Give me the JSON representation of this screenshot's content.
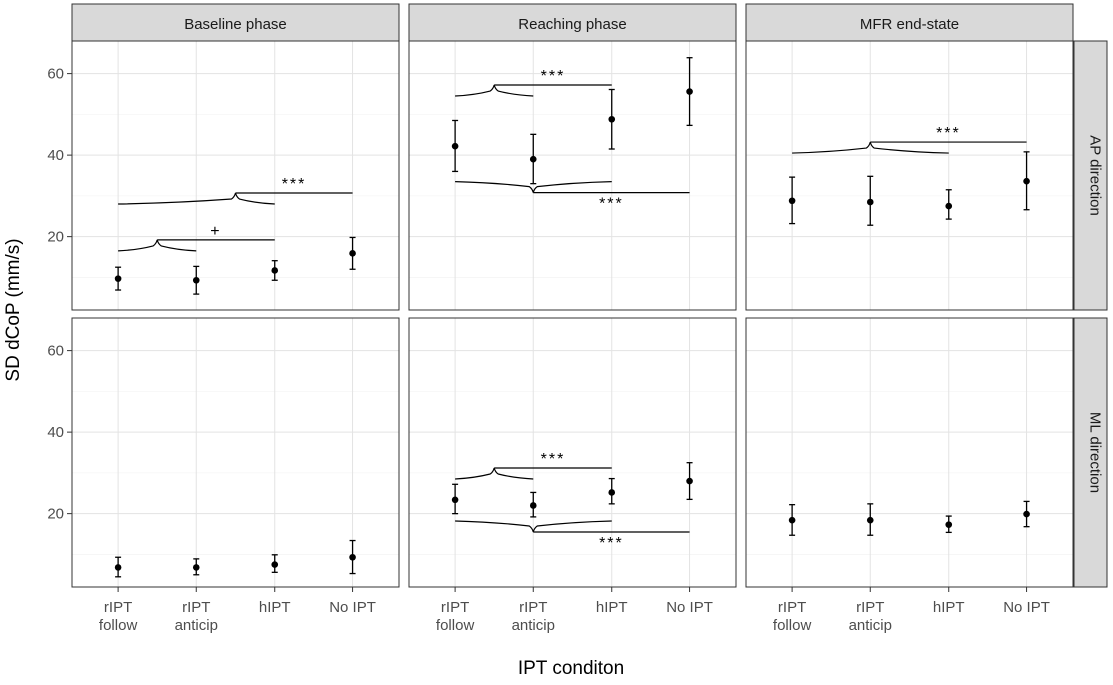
{
  "chart_data": {
    "type": "scatter",
    "subtype": "faceted point estimates with error bars",
    "ylabel": "SD dCoP (mm/s)",
    "xlabel": "IPT conditon",
    "ylim": [
      2,
      68
    ],
    "yticks": [
      20,
      40,
      60
    ],
    "grid": true,
    "categories": [
      {
        "lines": [
          "rIPT",
          "follow"
        ]
      },
      {
        "lines": [
          "rIPT",
          "anticip"
        ]
      },
      {
        "lines": [
          "hIPT"
        ]
      },
      {
        "lines": [
          "No IPT"
        ]
      }
    ],
    "columns": [
      "Baseline phase",
      "Reaching phase",
      "MFR end-state"
    ],
    "rows": [
      "AP direction",
      "ML direction"
    ],
    "panels": [
      {
        "row": 0,
        "col": 0,
        "points": [
          {
            "y": 9.7,
            "lo": 6.9,
            "hi": 12.5
          },
          {
            "y": 9.3,
            "lo": 5.9,
            "hi": 12.7
          },
          {
            "y": 11.7,
            "lo": 9.3,
            "hi": 14.1
          },
          {
            "y": 15.9,
            "lo": 12.0,
            "hi": 19.8
          }
        ],
        "annotations": [
          {
            "type": "brace",
            "from": 0,
            "to": 2,
            "y": 28,
            "tip_at": 1.5,
            "bar_end": 3,
            "label": "***"
          },
          {
            "type": "brace",
            "from": 0,
            "to": 1,
            "y": 16.5,
            "tip_at": 0.5,
            "bar_end": 2,
            "label": "+"
          }
        ]
      },
      {
        "row": 0,
        "col": 1,
        "points": [
          {
            "y": 42.2,
            "lo": 36.0,
            "hi": 48.5
          },
          {
            "y": 39.0,
            "lo": 33.0,
            "hi": 45.1
          },
          {
            "y": 48.8,
            "lo": 41.5,
            "hi": 56.1
          },
          {
            "y": 55.6,
            "lo": 47.3,
            "hi": 63.9
          }
        ],
        "annotations": [
          {
            "type": "brace",
            "from": 0,
            "to": 1,
            "y": 54.5,
            "tip_at": 0.5,
            "bar_end": 2,
            "label": "***"
          },
          {
            "type": "brace_down",
            "from": 0,
            "to": 2,
            "y": 33.5,
            "tip_at": 1,
            "bar_end": 3,
            "label": "***"
          }
        ]
      },
      {
        "row": 0,
        "col": 2,
        "points": [
          {
            "y": 28.8,
            "lo": 23.2,
            "hi": 34.6
          },
          {
            "y": 28.5,
            "lo": 22.8,
            "hi": 34.8
          },
          {
            "y": 27.5,
            "lo": 24.3,
            "hi": 31.5
          },
          {
            "y": 33.6,
            "lo": 26.6,
            "hi": 40.8
          }
        ],
        "annotations": [
          {
            "type": "brace",
            "from": 0,
            "to": 2,
            "y": 40.5,
            "tip_at": 1,
            "bar_end": 3,
            "label": "***"
          }
        ]
      },
      {
        "row": 1,
        "col": 0,
        "points": [
          {
            "y": 6.8,
            "lo": 4.5,
            "hi": 9.3
          },
          {
            "y": 6.8,
            "lo": 5.0,
            "hi": 8.9
          },
          {
            "y": 7.5,
            "lo": 5.6,
            "hi": 9.9
          },
          {
            "y": 9.3,
            "lo": 5.3,
            "hi": 13.4
          }
        ],
        "annotations": []
      },
      {
        "row": 1,
        "col": 1,
        "points": [
          {
            "y": 23.4,
            "lo": 20.0,
            "hi": 27.2
          },
          {
            "y": 22.0,
            "lo": 19.2,
            "hi": 25.2
          },
          {
            "y": 25.2,
            "lo": 22.4,
            "hi": 28.6
          },
          {
            "y": 28.0,
            "lo": 23.5,
            "hi": 32.5
          }
        ],
        "annotations": [
          {
            "type": "brace",
            "from": 0,
            "to": 1,
            "y": 28.5,
            "tip_at": 0.5,
            "bar_end": 2,
            "label": "***"
          },
          {
            "type": "brace_down",
            "from": 0,
            "to": 2,
            "y": 18.2,
            "tip_at": 1,
            "bar_end": 3,
            "label": "***"
          }
        ]
      },
      {
        "row": 1,
        "col": 2,
        "points": [
          {
            "y": 18.4,
            "lo": 14.7,
            "hi": 22.2
          },
          {
            "y": 18.4,
            "lo": 14.7,
            "hi": 22.4
          },
          {
            "y": 17.3,
            "lo": 15.4,
            "hi": 19.4
          },
          {
            "y": 19.9,
            "lo": 16.8,
            "hi": 23.0
          }
        ],
        "annotations": []
      }
    ]
  }
}
